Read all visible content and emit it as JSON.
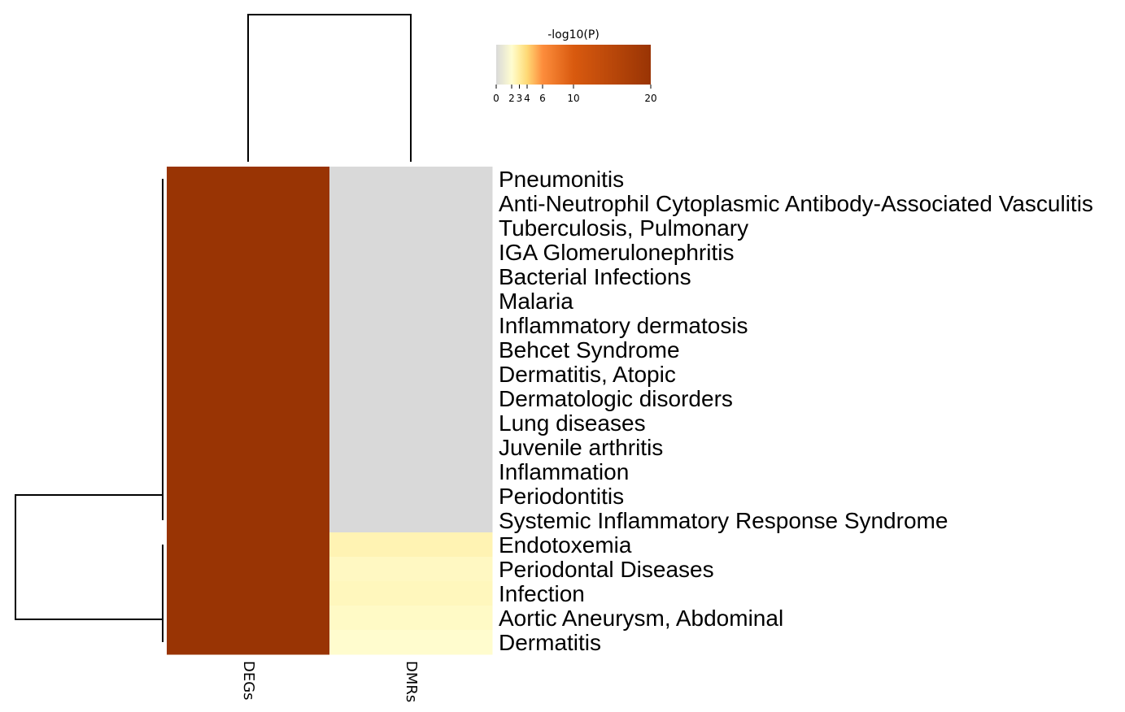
{
  "chart_data": {
    "type": "heatmap",
    "title": "",
    "columns": [
      "DEGs",
      "DMRs"
    ],
    "rows": [
      "Pneumonitis",
      "Anti-Neutrophil Cytoplasmic Antibody-Associated Vasculitis",
      "Tuberculosis, Pulmonary",
      "IGA Glomerulonephritis",
      "Bacterial Infections",
      "Malaria",
      "Inflammatory dermatosis",
      "Behcet Syndrome",
      "Dermatitis, Atopic",
      "Dermatologic disorders",
      "Lung diseases",
      "Juvenile arthritis",
      "Inflammation",
      "Periodontitis",
      "Systemic Inflammatory Response Syndrome",
      "Endotoxemia",
      "Periodontal Diseases",
      "Infection",
      "Aortic Aneurysm, Abdominal",
      "Dermatitis"
    ],
    "values": [
      [
        20,
        0
      ],
      [
        20,
        0
      ],
      [
        20,
        0
      ],
      [
        20,
        0
      ],
      [
        20,
        0
      ],
      [
        20,
        0
      ],
      [
        20,
        0
      ],
      [
        20,
        0
      ],
      [
        20,
        0
      ],
      [
        20,
        0
      ],
      [
        20,
        0
      ],
      [
        20,
        0
      ],
      [
        20,
        0
      ],
      [
        20,
        0
      ],
      [
        20,
        0
      ],
      [
        20,
        2.6
      ],
      [
        20,
        2.3
      ],
      [
        20,
        2.4
      ],
      [
        20,
        2.2
      ],
      [
        20,
        2.05
      ]
    ],
    "colorbar": {
      "title": "-log10(P)",
      "ticks": [
        0,
        2,
        3,
        4,
        6,
        10,
        20
      ],
      "range": [
        0,
        20
      ],
      "stops": [
        {
          "v": 0,
          "color": "#d9d9d9"
        },
        {
          "v": 2,
          "color": "#fffdd0"
        },
        {
          "v": 3,
          "color": "#ffeda0"
        },
        {
          "v": 4,
          "color": "#fed976"
        },
        {
          "v": 6,
          "color": "#fd8d3c"
        },
        {
          "v": 10,
          "color": "#d95a0f"
        },
        {
          "v": 20,
          "color": "#993404"
        }
      ]
    },
    "row_dendrogram": "two clusters: rows 1-15 and rows 16-20",
    "column_dendrogram": "DEGs and DMRs joined"
  }
}
